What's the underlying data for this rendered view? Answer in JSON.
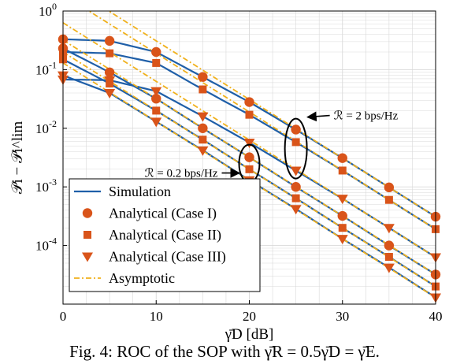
{
  "caption": "Fig. 4: ROC of the SOP with γ̄R = 0.5γ̄D = γ̄E.",
  "colors": {
    "simulation": "#1f5fa8",
    "analytical": "#d9541a",
    "asymptotic": "#f0b11c",
    "grid": "#d9d9d9"
  },
  "chart_data": {
    "type": "line",
    "xlabel": "γ̄D [dB]",
    "ylabel": "𝒫i − 𝒫i^lim",
    "xlim": [
      0,
      40
    ],
    "ylim": [
      1e-05,
      1
    ],
    "yscale": "log",
    "grid": true,
    "legend_position": "bottom-left",
    "x_ticks": [
      "0",
      "10",
      "20",
      "30",
      "40"
    ],
    "y_ticks": [
      {
        "base": "10",
        "exp": "0"
      },
      {
        "base": "10",
        "exp": "-1"
      },
      {
        "base": "10",
        "exp": "-2"
      },
      {
        "base": "10",
        "exp": "-3"
      },
      {
        "base": "10",
        "exp": "-4"
      }
    ],
    "legend": [
      "Simulation",
      "Analytical (Case I)",
      "Analytical (Case II)",
      "Analytical (Case III)",
      "Asymptotic"
    ],
    "annotations": [
      {
        "text": "ℛ = 2 bps/Hz",
        "x": 25,
        "y": 0.0045
      },
      {
        "text": "ℛ = 0.2 bps/Hz",
        "x": 20,
        "y": 0.0025
      }
    ],
    "x": [
      0,
      5,
      10,
      15,
      20,
      25,
      30,
      35,
      40
    ],
    "series": [
      {
        "name": "Analytical (Case I)",
        "rate": "2 bps/Hz",
        "marker": "circle",
        "values": [
          0.33,
          0.31,
          0.2,
          0.075,
          0.028,
          0.0095,
          0.0031,
          0.00098,
          0.00031
        ]
      },
      {
        "name": "Analytical (Case II)",
        "rate": "2 bps/Hz",
        "marker": "square",
        "values": [
          0.2,
          0.19,
          0.13,
          0.046,
          0.017,
          0.0058,
          0.0019,
          0.0006,
          0.00019
        ]
      },
      {
        "name": "Analytical (Case III)",
        "rate": "2 bps/Hz",
        "marker": "triangle",
        "values": [
          0.068,
          0.066,
          0.043,
          0.016,
          0.0057,
          0.0019,
          0.00063,
          0.0002,
          6.3e-05
        ]
      },
      {
        "name": "Analytical (Case I)",
        "rate": "0.2 bps/Hz",
        "marker": "circle",
        "values": [
          0.23,
          0.09,
          0.032,
          0.01,
          0.0032,
          0.001,
          0.00032,
          0.0001,
          3.2e-05
        ]
      },
      {
        "name": "Analytical (Case II)",
        "rate": "0.2 bps/Hz",
        "marker": "square",
        "values": [
          0.15,
          0.058,
          0.02,
          0.0064,
          0.002,
          0.00064,
          0.0002,
          6.4e-05,
          2e-05
        ]
      },
      {
        "name": "Analytical (Case III)",
        "rate": "0.2 bps/Hz",
        "marker": "triangle",
        "values": [
          0.08,
          0.04,
          0.013,
          0.0042,
          0.0013,
          0.00042,
          0.00013,
          4.2e-05,
          1.3e-05
        ]
      }
    ]
  }
}
